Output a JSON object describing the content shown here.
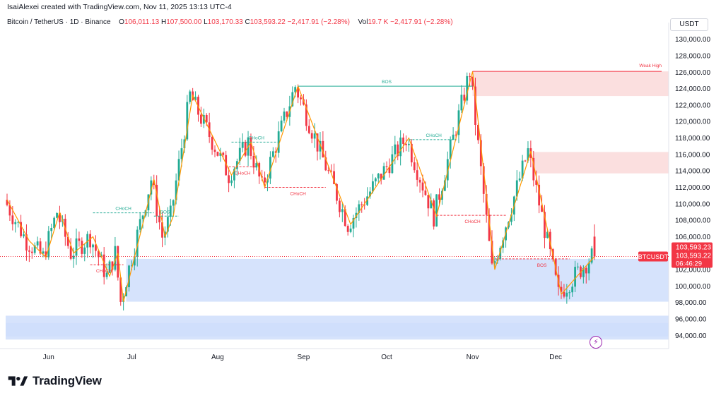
{
  "header": {
    "credit": "IsaiAlexei created with TradingView.com, Nov 11, 2025 13:13 UTC-4"
  },
  "legend": {
    "symbol": "Bitcoin / TetherUS · 1D · Binance",
    "open_label": "O",
    "open": "106,011.13",
    "high_label": "H",
    "high": "107,500.00",
    "low_label": "L",
    "low": "103,170.33",
    "close_label": "C",
    "close": "103,593.22",
    "change": "−2,417.91 (−2.28%)",
    "vol_label": "Vol",
    "vol": "19.7 K",
    "vol_change": "−2,417.91 (−2.28%)"
  },
  "currency_button": "USDT",
  "footer": {
    "brand": "TradingView"
  },
  "colors": {
    "up": "#22ab94",
    "down": "#f23645",
    "zigzag": "#ff9800",
    "demand": "#cfdefc",
    "supply": "#fbdcdc"
  },
  "chart_data": {
    "type": "candlestick",
    "symbol": "BTCUSDT",
    "y_axis": {
      "ticks": [
        "130,000.00",
        "128,000.00",
        "126,000.00",
        "124,000.00",
        "122,000.00",
        "120,000.00",
        "118,000.00",
        "116,000.00",
        "114,000.00",
        "112,000.00",
        "110,000.00",
        "108,000.00",
        "106,000.00",
        "104,000.00",
        "102,000.00",
        "100,000.00",
        "98,000.00",
        "96,000.00",
        "94,000.00"
      ],
      "range": [
        92400,
        131000
      ]
    },
    "x_axis": {
      "ticks": [
        "Jun",
        "Jul",
        "Aug",
        "Sep",
        "Oct",
        "Nov",
        "Dec"
      ]
    },
    "price_labels": {
      "symbol_tag": "BTCUSDT",
      "last": "103,593.23",
      "close": "103,593.22",
      "countdown": "06:46:29"
    },
    "annotations": [
      "BOS",
      "BOS",
      "BOS",
      "CHoCH",
      "CHoCH",
      "CHoCH",
      "CHoCH",
      "CHoCH",
      "CHoCH",
      "CHoCH",
      "Weak High"
    ],
    "pivots": [
      [
        0,
        110500
      ],
      [
        8,
        105500
      ],
      [
        14,
        103500
      ],
      [
        19,
        109000
      ],
      [
        24,
        104000
      ],
      [
        31,
        106000
      ],
      [
        37,
        101200
      ],
      [
        40,
        104000
      ],
      [
        42,
        98100
      ],
      [
        53,
        113000
      ],
      [
        57,
        106000
      ],
      [
        60,
        108500
      ],
      [
        67,
        123200
      ],
      [
        81,
        113500
      ],
      [
        88,
        117500
      ],
      [
        93,
        112000
      ],
      [
        105,
        124300
      ],
      [
        124,
        107500
      ],
      [
        145,
        118000
      ],
      [
        155,
        108500
      ],
      [
        168,
        126100
      ],
      [
        176,
        102000
      ],
      [
        189,
        116400
      ],
      [
        200,
        99000
      ],
      [
        212,
        103600
      ]
    ],
    "zones": [
      {
        "type": "demand",
        "from_x": 43,
        "to_x": 229,
        "low": 98100,
        "high": 103300
      },
      {
        "type": "demand",
        "from_x": 0,
        "to_x": 229,
        "low": 93500,
        "high": 96400
      },
      {
        "type": "demand",
        "from_x": 0,
        "to_x": 229,
        "low": 93900,
        "high": 95500
      },
      {
        "type": "supply",
        "from_x": 168,
        "to_x": 229,
        "low": 123100,
        "high": 126100
      },
      {
        "type": "supply",
        "from_x": 190,
        "to_x": 229,
        "low": 113700,
        "high": 116300
      }
    ]
  }
}
